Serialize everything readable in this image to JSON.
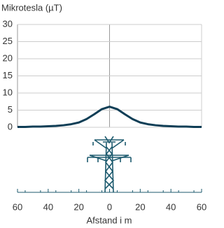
{
  "chart_data": {
    "type": "line",
    "y_label": "Mikrotesla (µT)",
    "x_label": "Afstand i m",
    "x": [
      -60,
      -55,
      -50,
      -45,
      -40,
      -35,
      -30,
      -25,
      -20,
      -15,
      -10,
      -5,
      0,
      5,
      10,
      15,
      20,
      25,
      30,
      35,
      40,
      45,
      50,
      55,
      60
    ],
    "series": [
      {
        "color": "#0f3e56",
        "values": [
          0.1,
          0.1,
          0.2,
          0.2,
          0.3,
          0.4,
          0.6,
          0.9,
          1.4,
          2.4,
          3.8,
          5.3,
          6,
          5.3,
          3.8,
          2.4,
          1.4,
          0.9,
          0.6,
          0.4,
          0.3,
          0.2,
          0.2,
          0.1,
          0.1
        ]
      }
    ],
    "xlim": [
      -60,
      60
    ],
    "xticks": [
      {
        "value": -60,
        "label": "60"
      },
      {
        "value": -40,
        "label": "40"
      },
      {
        "value": -20,
        "label": "20"
      },
      0,
      20,
      40,
      60
    ],
    "ylim": [
      0,
      30
    ],
    "yticks": [
      0,
      5,
      10,
      15,
      20,
      25,
      30
    ],
    "grid": true
  }
}
